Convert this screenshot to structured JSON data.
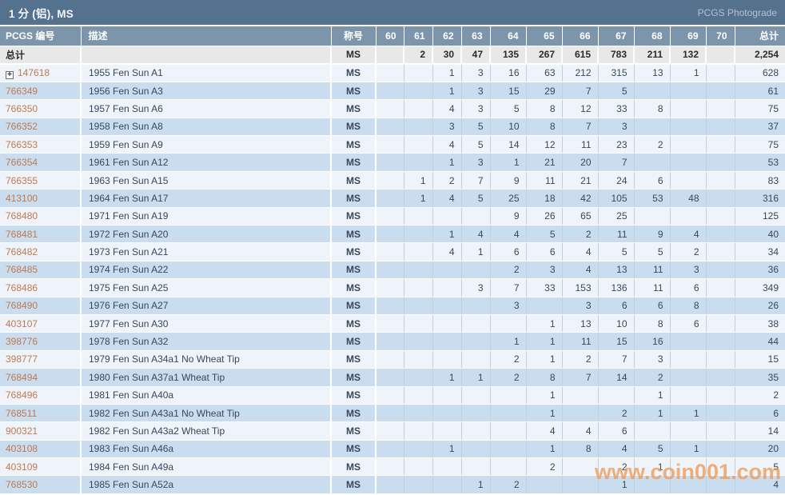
{
  "title_bar": {
    "title": "1 分 (铝), MS",
    "right_label": "PCGS Photograde"
  },
  "columns": {
    "pcgs": "PCGS 编号",
    "description": "描述",
    "designation": "称号",
    "grades": [
      "60",
      "61",
      "62",
      "63",
      "64",
      "65",
      "66",
      "67",
      "68",
      "69",
      "70"
    ],
    "total": "总计"
  },
  "totals": {
    "label": "总计",
    "designation": "MS",
    "grades": {
      "61": "2",
      "62": "30",
      "63": "47",
      "64": "135",
      "65": "267",
      "66": "615",
      "67": "783",
      "68": "211",
      "69": "132"
    },
    "total": "2,254"
  },
  "rows": [
    {
      "pcgs_no": "147618",
      "expandable": true,
      "description": "1955 Fen Sun A1",
      "designation": "MS",
      "grades": {
        "62": "1",
        "63": "3",
        "64": "16",
        "65": "63",
        "66": "212",
        "67": "315",
        "68": "13",
        "69": "1"
      },
      "total": "628"
    },
    {
      "pcgs_no": "766349",
      "expandable": false,
      "description": "1956 Fen Sun A3",
      "designation": "MS",
      "grades": {
        "62": "1",
        "63": "3",
        "64": "15",
        "65": "29",
        "66": "7",
        "67": "5"
      },
      "total": "61"
    },
    {
      "pcgs_no": "766350",
      "expandable": false,
      "description": "1957 Fen Sun A6",
      "designation": "MS",
      "grades": {
        "62": "4",
        "63": "3",
        "64": "5",
        "65": "8",
        "66": "12",
        "67": "33",
        "68": "8"
      },
      "total": "75"
    },
    {
      "pcgs_no": "766352",
      "expandable": false,
      "description": "1958 Fen Sun A8",
      "designation": "MS",
      "grades": {
        "62": "3",
        "63": "5",
        "64": "10",
        "65": "8",
        "66": "7",
        "67": "3"
      },
      "total": "37"
    },
    {
      "pcgs_no": "766353",
      "expandable": false,
      "description": "1959 Fen Sun A9",
      "designation": "MS",
      "grades": {
        "62": "4",
        "63": "5",
        "64": "14",
        "65": "12",
        "66": "11",
        "67": "23",
        "68": "2"
      },
      "total": "75"
    },
    {
      "pcgs_no": "766354",
      "expandable": false,
      "description": "1961 Fen Sun A12",
      "designation": "MS",
      "grades": {
        "62": "1",
        "63": "3",
        "64": "1",
        "65": "21",
        "66": "20",
        "67": "7"
      },
      "total": "53"
    },
    {
      "pcgs_no": "766355",
      "expandable": false,
      "description": "1963 Fen Sun A15",
      "designation": "MS",
      "grades": {
        "61": "1",
        "62": "2",
        "63": "7",
        "64": "9",
        "65": "11",
        "66": "21",
        "67": "24",
        "68": "6"
      },
      "total": "83"
    },
    {
      "pcgs_no": "413100",
      "expandable": false,
      "description": "1964 Fen Sun A17",
      "designation": "MS",
      "grades": {
        "61": "1",
        "62": "4",
        "63": "5",
        "64": "25",
        "65": "18",
        "66": "42",
        "67": "105",
        "68": "53",
        "69": "48"
      },
      "total": "316"
    },
    {
      "pcgs_no": "768480",
      "expandable": false,
      "description": "1971 Fen Sun A19",
      "designation": "MS",
      "grades": {
        "64": "9",
        "65": "26",
        "66": "65",
        "67": "25"
      },
      "total": "125"
    },
    {
      "pcgs_no": "768481",
      "expandable": false,
      "description": "1972 Fen Sun A20",
      "designation": "MS",
      "grades": {
        "62": "1",
        "63": "4",
        "64": "4",
        "65": "5",
        "66": "2",
        "67": "11",
        "68": "9",
        "69": "4"
      },
      "total": "40"
    },
    {
      "pcgs_no": "768482",
      "expandable": false,
      "description": "1973 Fen Sun A21",
      "designation": "MS",
      "grades": {
        "62": "4",
        "63": "1",
        "64": "6",
        "65": "6",
        "66": "4",
        "67": "5",
        "68": "5",
        "69": "2"
      },
      "total": "34"
    },
    {
      "pcgs_no": "768485",
      "expandable": false,
      "description": "1974 Fen Sun A22",
      "designation": "MS",
      "grades": {
        "64": "2",
        "65": "3",
        "66": "4",
        "67": "13",
        "68": "11",
        "69": "3"
      },
      "total": "36"
    },
    {
      "pcgs_no": "768486",
      "expandable": false,
      "description": "1975 Fen Sun A25",
      "designation": "MS",
      "grades": {
        "63": "3",
        "64": "7",
        "65": "33",
        "66": "153",
        "67": "136",
        "68": "11",
        "69": "6"
      },
      "total": "349"
    },
    {
      "pcgs_no": "768490",
      "expandable": false,
      "description": "1976 Fen Sun A27",
      "designation": "MS",
      "grades": {
        "64": "3",
        "66": "3",
        "67": "6",
        "68": "6",
        "69": "8"
      },
      "total": "26"
    },
    {
      "pcgs_no": "403107",
      "expandable": false,
      "description": "1977 Fen Sun A30",
      "designation": "MS",
      "grades": {
        "65": "1",
        "66": "13",
        "67": "10",
        "68": "8",
        "69": "6"
      },
      "total": "38"
    },
    {
      "pcgs_no": "398776",
      "expandable": false,
      "description": "1978 Fen Sun A32",
      "designation": "MS",
      "grades": {
        "64": "1",
        "65": "1",
        "66": "11",
        "67": "15",
        "68": "16"
      },
      "total": "44"
    },
    {
      "pcgs_no": "398777",
      "expandable": false,
      "description": "1979 Fen Sun A34a1 No Wheat Tip",
      "designation": "MS",
      "grades": {
        "64": "2",
        "65": "1",
        "66": "2",
        "67": "7",
        "68": "3"
      },
      "total": "15"
    },
    {
      "pcgs_no": "768494",
      "expandable": false,
      "description": "1980 Fen Sun A37a1 Wheat Tip",
      "designation": "MS",
      "grades": {
        "62": "1",
        "63": "1",
        "64": "2",
        "65": "8",
        "66": "7",
        "67": "14",
        "68": "2"
      },
      "total": "35"
    },
    {
      "pcgs_no": "768496",
      "expandable": false,
      "description": "1981 Fen Sun A40a",
      "designation": "MS",
      "grades": {
        "65": "1",
        "68": "1"
      },
      "total": "2"
    },
    {
      "pcgs_no": "768511",
      "expandable": false,
      "description": "1982 Fen Sun A43a1 No Wheat Tip",
      "designation": "MS",
      "grades": {
        "65": "1",
        "67": "2",
        "68": "1",
        "69": "1"
      },
      "total": "6"
    },
    {
      "pcgs_no": "900321",
      "expandable": false,
      "description": "1982 Fen Sun A43a2 Wheat Tip",
      "designation": "MS",
      "grades": {
        "65": "4",
        "66": "4",
        "67": "6"
      },
      "total": "14"
    },
    {
      "pcgs_no": "403108",
      "expandable": false,
      "description": "1983 Fen Sun A46a",
      "designation": "MS",
      "grades": {
        "62": "1",
        "65": "1",
        "66": "8",
        "67": "4",
        "68": "5",
        "69": "1"
      },
      "total": "20"
    },
    {
      "pcgs_no": "403109",
      "expandable": false,
      "description": "1984 Fen Sun A49a",
      "designation": "MS",
      "grades": {
        "65": "2",
        "67": "2",
        "68": "1"
      },
      "total": "5"
    },
    {
      "pcgs_no": "768530",
      "expandable": false,
      "description": "1985 Fen Sun A52a",
      "designation": "MS",
      "grades": {
        "63": "1",
        "64": "2",
        "67": "1"
      },
      "total": "4"
    }
  ],
  "icons": {
    "expand": "+"
  },
  "watermark": {
    "text": "www.coin001.com"
  },
  "colors": {
    "title_bar_bg": "#54718e",
    "header_bg": "#7d95aa",
    "totals_bg": "#e8e8e8",
    "row_blue": "#c9ddef",
    "row_light": "#eef4f9",
    "pcgs_link": "#c0794f",
    "watermark": "#f09a55"
  }
}
